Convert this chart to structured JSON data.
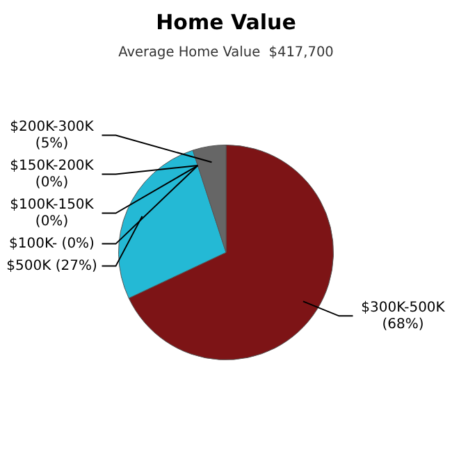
{
  "chart_data": {
    "type": "pie",
    "title": "Home Value",
    "subtitle": "Average Home Value  $417,700",
    "categories": [
      "$300K-500K",
      "$500K",
      "$150K-200K",
      "$100K-150K",
      "$100K-",
      "$200K-300K"
    ],
    "values": [
      68,
      27,
      0,
      0,
      0,
      5
    ],
    "value_labels": [
      "(68%)",
      "(27%)",
      "(0%)",
      "(0%)",
      "(0%)",
      "(5%)"
    ],
    "colors": [
      "#7d1416",
      "#24b9d5",
      "#3b6e8f",
      "#8a9a3a",
      "#c08a2a",
      "#666666"
    ],
    "legend": false
  }
}
